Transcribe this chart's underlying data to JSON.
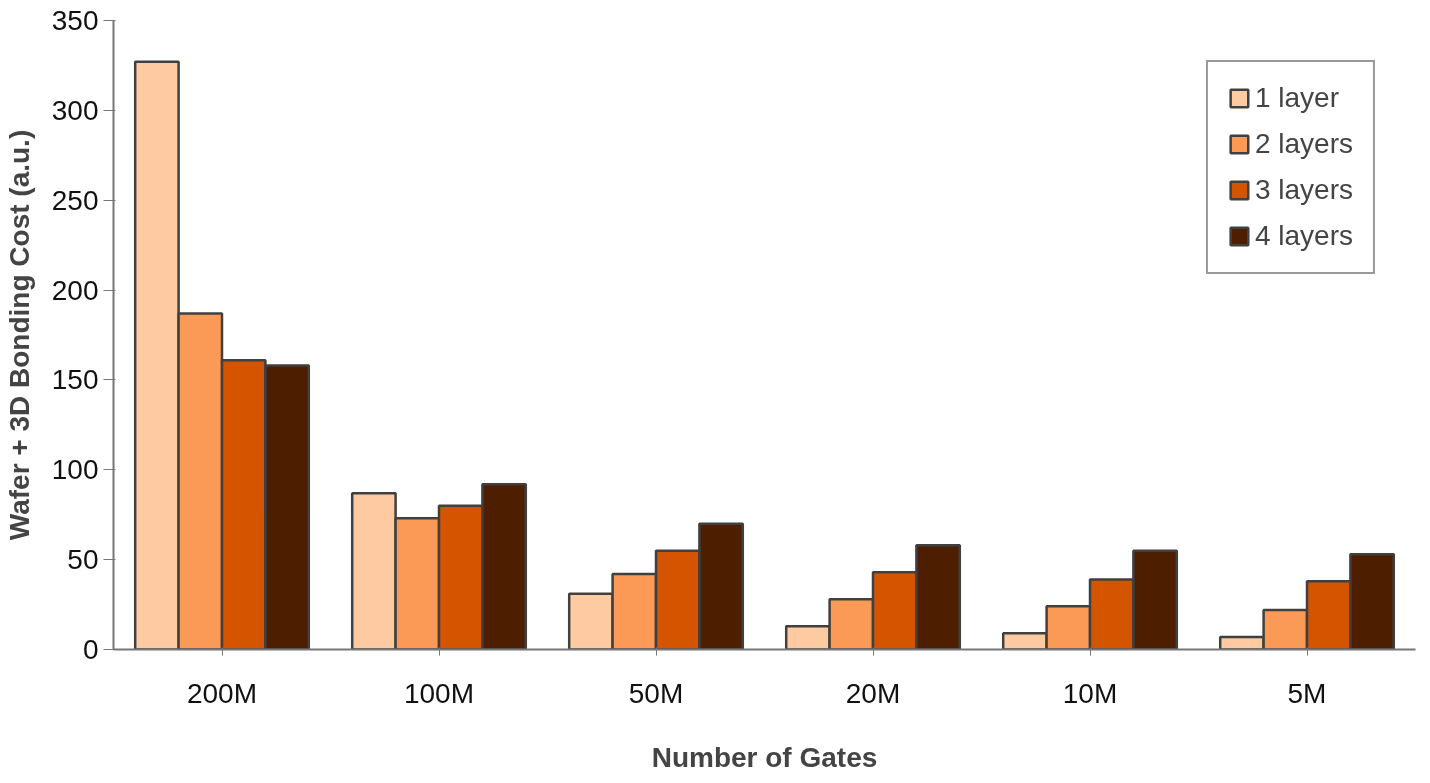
{
  "chart_data": {
    "type": "bar",
    "xlabel": "Number of Gates",
    "ylabel": "Wafer + 3D Bonding Cost (a.u.)",
    "categories": [
      "200M",
      "100M",
      "50M",
      "20M",
      "10M",
      "5M"
    ],
    "series": [
      {
        "name": "1 layer",
        "color": "#fdcaa2",
        "values": [
          327,
          87,
          31,
          13,
          9,
          7
        ]
      },
      {
        "name": "2 layers",
        "color": "#fb9a57",
        "values": [
          187,
          73,
          42,
          28,
          24,
          22
        ]
      },
      {
        "name": "3 layers",
        "color": "#d55400",
        "values": [
          161,
          80,
          55,
          43,
          39,
          38
        ]
      },
      {
        "name": "4 layers",
        "color": "#4e1e00",
        "values": [
          158,
          92,
          70,
          58,
          55,
          53
        ]
      }
    ],
    "ylim": [
      0,
      350
    ],
    "yticks": [
      0,
      50,
      100,
      150,
      200,
      250,
      300,
      350
    ],
    "grid": false,
    "legend": "top right"
  }
}
